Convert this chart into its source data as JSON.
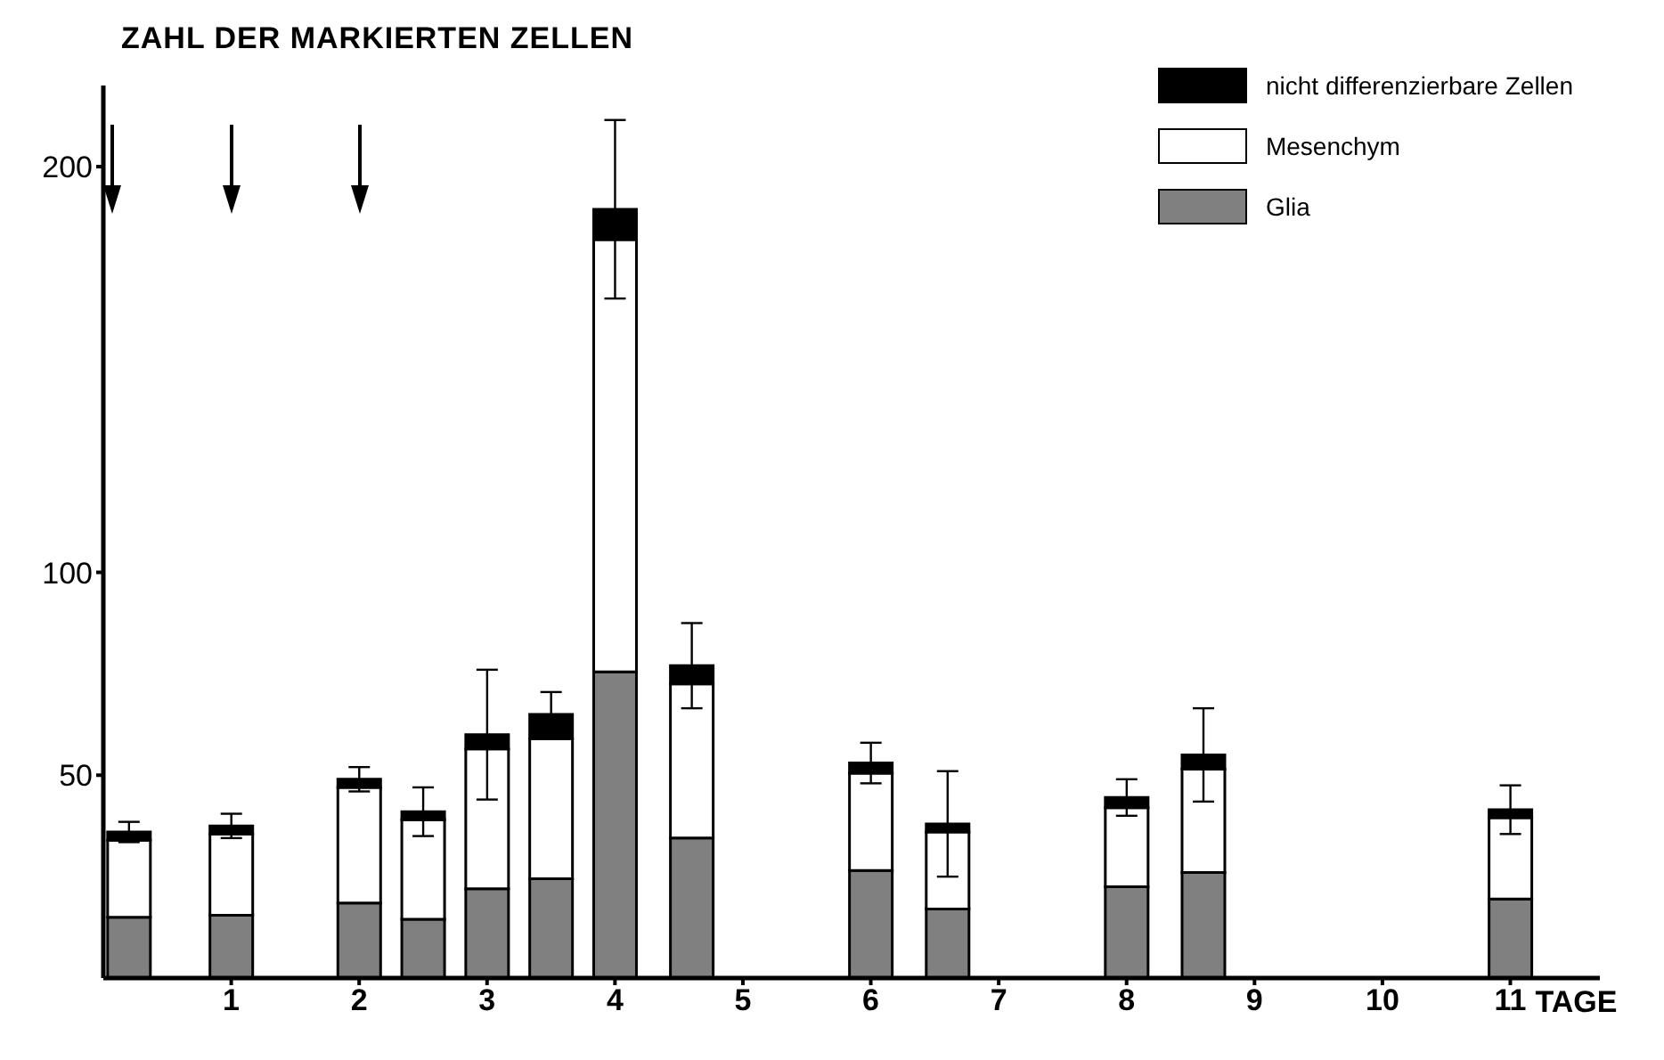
{
  "chart_data": {
    "type": "bar",
    "stacked": true,
    "ylabel": "ZAHL DER MARKIERTEN ZELLEN",
    "xlabel": "TAGE",
    "x": [
      0.2,
      1,
      2,
      2.5,
      3,
      3.5,
      4,
      4.6,
      6,
      6.6,
      8,
      8.6,
      11
    ],
    "xlim": [
      0,
      11.7
    ],
    "xticks": [
      1,
      2,
      3,
      4,
      5,
      6,
      7,
      8,
      9,
      10,
      11
    ],
    "ylim": [
      0,
      220
    ],
    "yticks": [
      50,
      100,
      200
    ],
    "series": [
      {
        "name": "Glia",
        "color": "#808080",
        "values": [
          15,
          15.5,
          18.5,
          14.5,
          22,
          24.5,
          75.5,
          34.5,
          26.5,
          17,
          22.5,
          26,
          19.5
        ]
      },
      {
        "name": "Mesenchym",
        "color": "#ffffff",
        "values": [
          19,
          20,
          28.5,
          24.5,
          34.5,
          34.5,
          106.5,
          38,
          24,
          19,
          19.5,
          25.5,
          20
        ]
      },
      {
        "name": "nicht differenzierbare Zellen",
        "color": "#000000",
        "values": [
          2,
          2,
          2,
          2,
          3.5,
          6,
          7.5,
          4.5,
          2.5,
          2,
          2.5,
          3.5,
          2
        ],
        "errors": [
          2.5,
          3,
          3,
          6,
          16,
          5.5,
          22,
          10.5,
          5,
          13,
          4.5,
          11.5,
          6
        ]
      }
    ],
    "grid": false,
    "legend": "top right"
  }
}
